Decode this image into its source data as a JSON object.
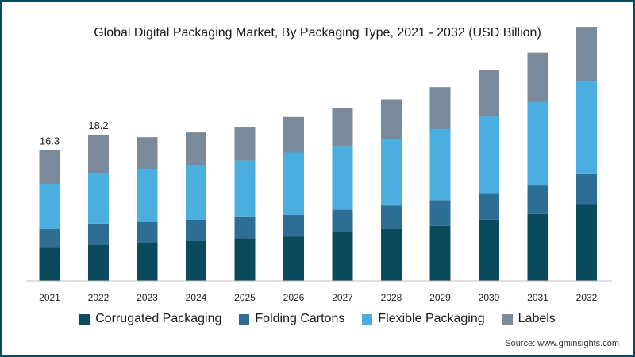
{
  "header": {
    "title": "Global Digital Packaging Market, By Packaging Type, 2021 - 2032 (USD Billion)"
  },
  "footer": {
    "source": "Source: www.gminsights.com"
  },
  "chart_data": {
    "type": "bar",
    "stacked": true,
    "title": "Global Digital Packaging Market, By Packaging Type, 2021 - 2032 (USD Billion)",
    "xlabel": "",
    "ylabel": "",
    "grid": false,
    "legend_position": "bottom",
    "ylim": [
      0,
      32
    ],
    "categories": [
      "2021",
      "2022",
      "2023",
      "2024",
      "2025",
      "2026",
      "2027",
      "2028",
      "2029",
      "2030",
      "2031",
      "2032"
    ],
    "series": [
      {
        "name": "Corrugated Packaging",
        "color": "#0a4a5c",
        "values": [
          4.2,
          4.6,
          4.8,
          5.0,
          5.3,
          5.6,
          6.1,
          6.5,
          6.9,
          7.6,
          8.4,
          9.5
        ]
      },
      {
        "name": "Folding Cartons",
        "color": "#2e6d94",
        "values": [
          2.3,
          2.5,
          2.5,
          2.6,
          2.7,
          2.7,
          2.8,
          2.9,
          3.1,
          3.3,
          3.5,
          3.8
        ]
      },
      {
        "name": "Flexible Packaging",
        "color": "#4aaee0",
        "values": [
          5.6,
          6.3,
          6.6,
          6.8,
          7.0,
          7.7,
          7.8,
          8.3,
          8.9,
          9.6,
          10.4,
          11.6
        ]
      },
      {
        "name": "Labels",
        "color": "#7b8a9b",
        "values": [
          4.2,
          4.8,
          4.0,
          4.1,
          4.2,
          4.4,
          4.8,
          4.9,
          5.2,
          5.7,
          6.1,
          6.7
        ]
      }
    ],
    "data_labels": [
      {
        "category": "2021",
        "text": "16.3"
      },
      {
        "category": "2022",
        "text": "18.2"
      }
    ]
  }
}
